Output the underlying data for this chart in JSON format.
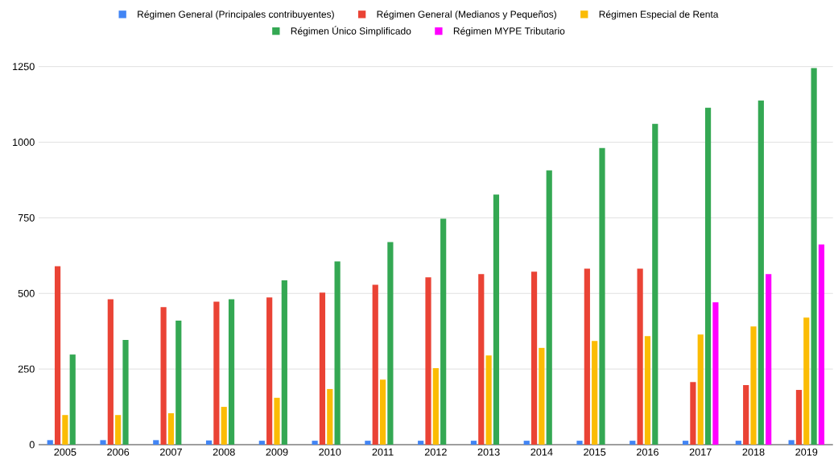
{
  "chart_data": {
    "type": "bar",
    "categories": [
      "2005",
      "2006",
      "2007",
      "2008",
      "2009",
      "2010",
      "2011",
      "2012",
      "2013",
      "2014",
      "2015",
      "2016",
      "2017",
      "2018",
      "2019"
    ],
    "series": [
      {
        "name": "Régimen General (Principales contribuyentes)",
        "color": "#4285f4",
        "values": [
          15,
          15,
          15,
          14,
          13,
          13,
          13,
          13,
          13,
          13,
          13,
          13,
          13,
          13,
          15
        ]
      },
      {
        "name": "Régimen General (Medianos y Pequeños)",
        "color": "#ea4335",
        "values": [
          590,
          481,
          455,
          473,
          487,
          503,
          529,
          553,
          564,
          572,
          582,
          582,
          207,
          197,
          181
        ]
      },
      {
        "name": "Régimen Especial de Renta",
        "color": "#fbbc04",
        "values": [
          98,
          98,
          104,
          125,
          155,
          184,
          215,
          253,
          295,
          320,
          343,
          359,
          364,
          391,
          420
        ]
      },
      {
        "name": "Régimen Único Simplificado",
        "color": "#34a853",
        "values": [
          298,
          346,
          410,
          481,
          543,
          606,
          670,
          747,
          827,
          907,
          981,
          1061,
          1114,
          1138,
          1245
        ]
      },
      {
        "name": "Régimen MYPE Tributario",
        "color": "#ff00ff",
        "values": [
          null,
          null,
          null,
          null,
          null,
          null,
          null,
          null,
          null,
          null,
          null,
          null,
          471,
          564,
          662
        ]
      }
    ],
    "ylim": [
      0,
      1250
    ],
    "yticks": [
      0,
      250,
      500,
      750,
      1000,
      1250
    ],
    "grid": "y",
    "legend": "top"
  }
}
